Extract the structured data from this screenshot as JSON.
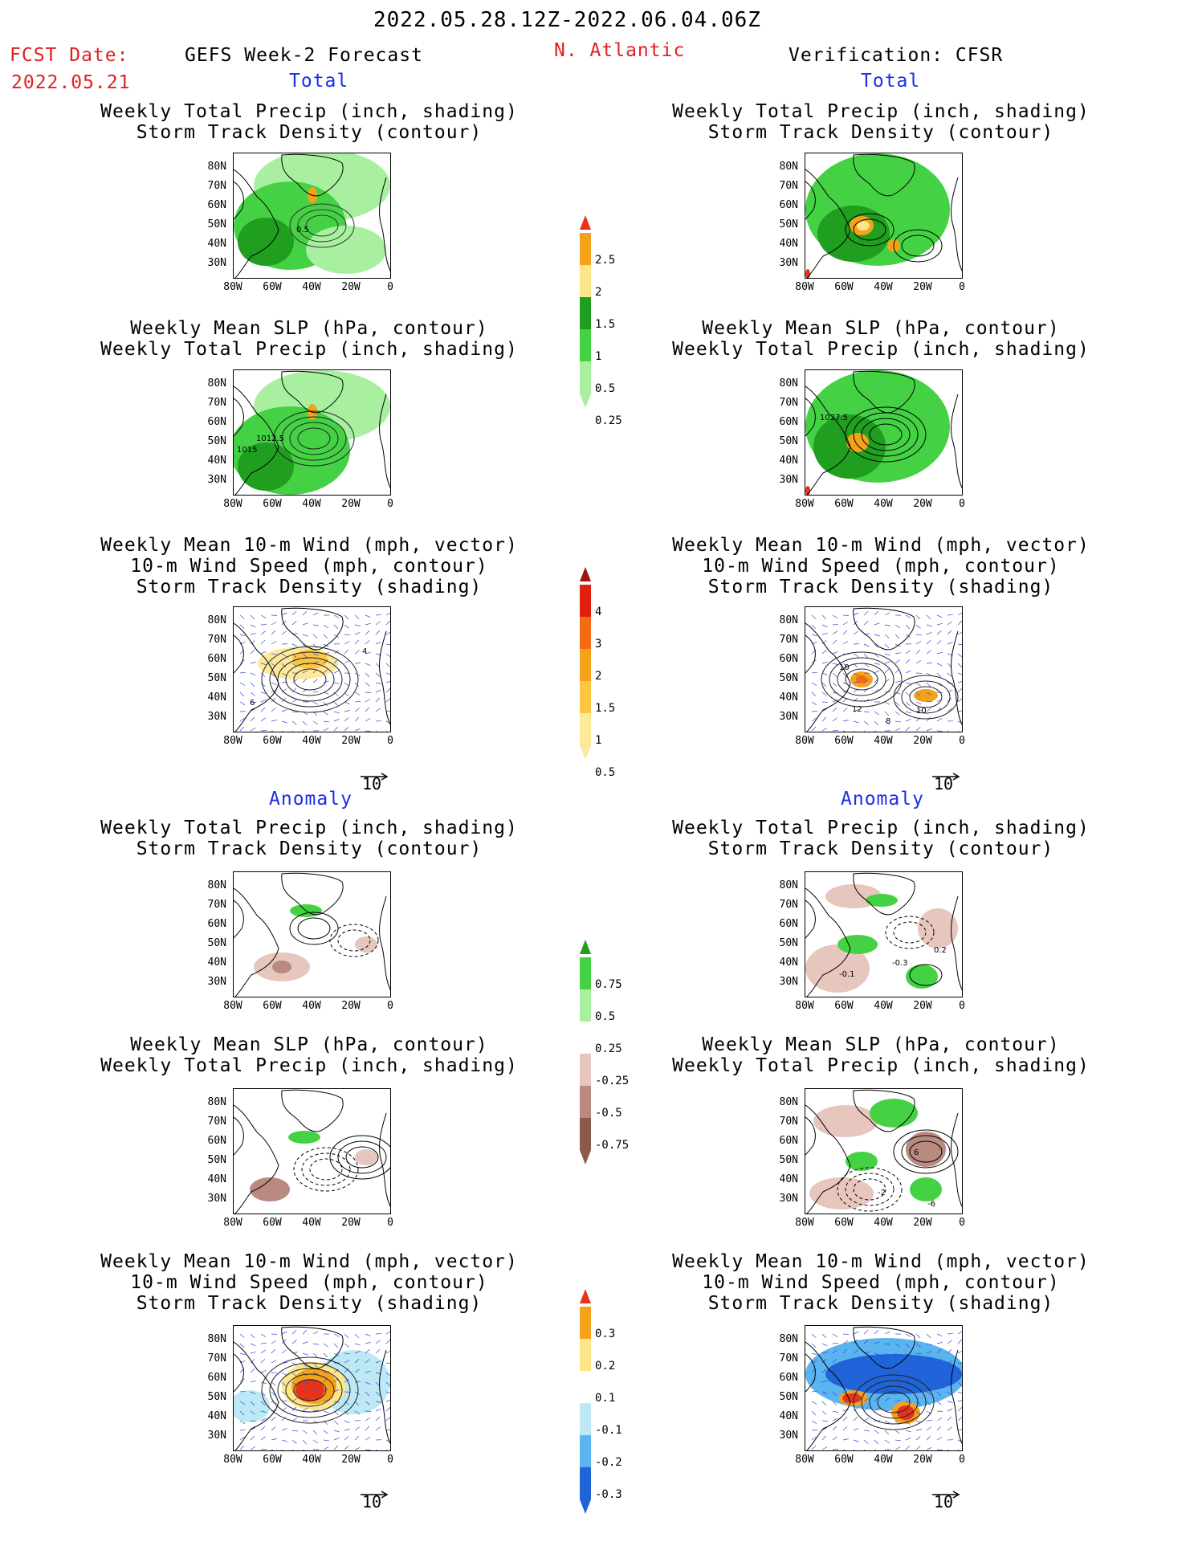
{
  "header": {
    "date_range": "2022.05.28.12Z-2022.06.04.06Z",
    "fcst_label": "FCST Date:",
    "fcst_date": "2022.05.21",
    "left_title": "GEFS Week-2 Forecast",
    "region": "N. Atlantic",
    "right_title": "Verification: CFSR"
  },
  "sections": {
    "total_label": "Total",
    "anomaly_label": "Anomaly"
  },
  "panel_titles": {
    "precip_track": [
      "Weekly Total Precip (inch, shading)",
      "Storm Track Density (contour)"
    ],
    "slp_precip": [
      "Weekly Mean SLP (hPa, contour)",
      "Weekly Total Precip (inch, shading)"
    ],
    "wind_track": [
      "Weekly Mean 10-m Wind (mph, vector)",
      "10-m Wind Speed (mph, contour)",
      "Storm Track Density (shading)"
    ]
  },
  "axes": {
    "lat_ticks": [
      "80N",
      "70N",
      "60N",
      "50N",
      "40N",
      "30N"
    ],
    "lon_ticks": [
      "80W",
      "60W",
      "40W",
      "20W",
      "0"
    ]
  },
  "vector_ref": "10",
  "contour_labels": {
    "fcst_precip_track": [
      "0.5"
    ],
    "fcst_slp": [
      "1012.5",
      "1015"
    ],
    "obs_slp": [
      "1027.5"
    ],
    "fcst_wind": [
      "6",
      "4"
    ],
    "obs_wind": [
      "10",
      "12",
      "10",
      "8"
    ],
    "obs_anom_precip": [
      "-0.1",
      "-0.3",
      "0.2"
    ],
    "obs_anom_slp": [
      "6",
      "-2",
      "-6"
    ]
  },
  "colorbars": {
    "precip_total": {
      "labels": [
        "2.5",
        "2",
        "1.5",
        "1",
        "0.5",
        "0.25"
      ],
      "colors": [
        "#e8331b",
        "#f5a21b",
        "#fde58a",
        "#1f9e1f",
        "#44d244",
        "#a8f0a0"
      ]
    },
    "track_total": {
      "labels": [
        "4",
        "3",
        "2",
        "1.5",
        "1",
        "0.5"
      ],
      "colors": [
        "#a01010",
        "#e0200c",
        "#f56a12",
        "#f5a21b",
        "#fcc542",
        "#fde99a"
      ]
    },
    "precip_anom": {
      "labels": [
        "0.75",
        "0.5",
        "0.25",
        "-0.25",
        "-0.5",
        "-0.75"
      ],
      "colors": [
        "#1f9e1f",
        "#44d244",
        "#a8f0a0",
        "#ffffff",
        "#e6c6bd",
        "#b88a80",
        "#8a5a4a"
      ]
    },
    "track_anom": {
      "labels": [
        "0.3",
        "0.2",
        "0.1",
        "-0.1",
        "-0.2",
        "-0.3"
      ],
      "colors": [
        "#e8331b",
        "#f5a21b",
        "#fde58a",
        "#ffffff",
        "#bde8f5",
        "#5ab4f0",
        "#1f64d8"
      ]
    }
  }
}
